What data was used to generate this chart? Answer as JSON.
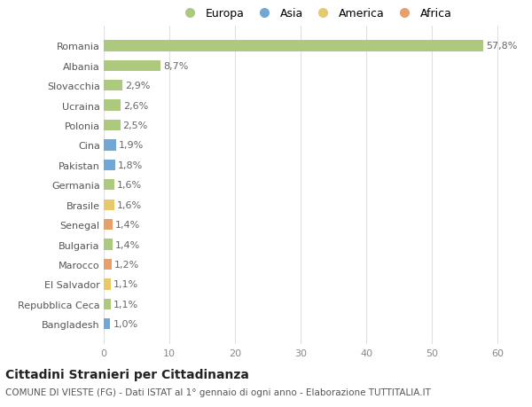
{
  "categories": [
    "Romania",
    "Albania",
    "Slovacchia",
    "Ucraina",
    "Polonia",
    "Cina",
    "Pakistan",
    "Germania",
    "Brasile",
    "Senegal",
    "Bulgaria",
    "Marocco",
    "El Salvador",
    "Repubblica Ceca",
    "Bangladesh"
  ],
  "values": [
    57.8,
    8.7,
    2.9,
    2.6,
    2.5,
    1.9,
    1.8,
    1.6,
    1.6,
    1.4,
    1.4,
    1.2,
    1.1,
    1.1,
    1.0
  ],
  "labels": [
    "57,8%",
    "8,7%",
    "2,9%",
    "2,6%",
    "2,5%",
    "1,9%",
    "1,8%",
    "1,6%",
    "1,6%",
    "1,4%",
    "1,4%",
    "1,2%",
    "1,1%",
    "1,1%",
    "1,0%"
  ],
  "colors": [
    "#adc97e",
    "#adc97e",
    "#adc97e",
    "#adc97e",
    "#adc97e",
    "#6fa8d6",
    "#6fa8d6",
    "#adc97e",
    "#e8c96a",
    "#e8a06a",
    "#adc97e",
    "#e8a06a",
    "#e8c96a",
    "#adc97e",
    "#6fa8d6"
  ],
  "legend_labels": [
    "Europa",
    "Asia",
    "America",
    "Africa"
  ],
  "legend_colors": [
    "#adc97e",
    "#6fa8d6",
    "#e8c96a",
    "#e8a06a"
  ],
  "title": "Cittadini Stranieri per Cittadinanza",
  "subtitle": "COMUNE DI VIESTE (FG) - Dati ISTAT al 1° gennaio di ogni anno - Elaborazione TUTTITALIA.IT",
  "xlim": [
    0,
    62
  ],
  "xticks": [
    0,
    10,
    20,
    30,
    40,
    50,
    60
  ],
  "background_color": "#ffffff",
  "grid_color": "#e0e0e0",
  "bar_height": 0.55,
  "title_fontsize": 10,
  "subtitle_fontsize": 7.5,
  "tick_fontsize": 8,
  "label_fontsize": 8,
  "legend_fontsize": 9
}
